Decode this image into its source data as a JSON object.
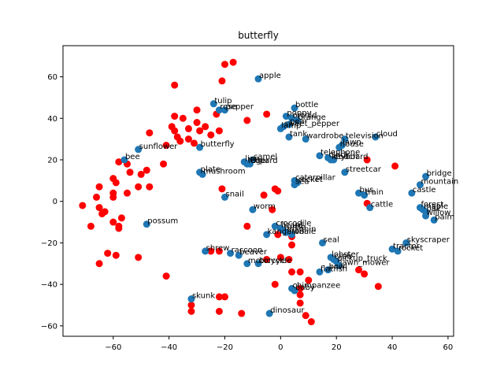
{
  "chart_data": {
    "type": "scatter",
    "title": "butterfly",
    "xlabel": "",
    "ylabel": "",
    "xlim": [
      -78,
      62
    ],
    "ylim": [
      -65,
      75
    ],
    "xticks": [
      -60,
      -40,
      -20,
      0,
      20,
      40,
      60
    ],
    "yticks": [
      -60,
      -40,
      -20,
      0,
      20,
      40,
      60
    ],
    "grid": false,
    "colors": {
      "labeled": "#1f77b4",
      "unlabeled": "#ff0000"
    },
    "labeled_points": [
      {
        "label": "apple",
        "x": -8,
        "y": 59
      },
      {
        "label": "bottle",
        "x": 5,
        "y": 45
      },
      {
        "label": "tulip",
        "x": -24,
        "y": 47
      },
      {
        "label": "rose",
        "x": -22,
        "y": 44
      },
      {
        "label": "pepper",
        "x": -20,
        "y": 44
      },
      {
        "label": "poppy",
        "x": 2,
        "y": 41
      },
      {
        "label": "orchid",
        "x": 4,
        "y": 40
      },
      {
        "label": "orange",
        "x": 6,
        "y": 39
      },
      {
        "label": "pear",
        "x": 3,
        "y": 37
      },
      {
        "label": "sweet_pepper",
        "x": 1,
        "y": 36
      },
      {
        "label": "lamp",
        "x": 0,
        "y": 35
      },
      {
        "label": "tank",
        "x": 3,
        "y": 31
      },
      {
        "label": "wardrobe",
        "x": 9,
        "y": 30
      },
      {
        "label": "television",
        "x": 23,
        "y": 30
      },
      {
        "label": "cloud",
        "x": 34,
        "y": 31
      },
      {
        "label": "lawn",
        "x": 22,
        "y": 27
      },
      {
        "label": "house",
        "x": 21,
        "y": 26
      },
      {
        "label": "butterfly",
        "x": -29,
        "y": 26
      },
      {
        "label": "sunflower",
        "x": -51,
        "y": 25
      },
      {
        "label": "bee",
        "x": -56,
        "y": 20
      },
      {
        "label": "camel",
        "x": -10,
        "y": 20
      },
      {
        "label": "lion",
        "x": -13,
        "y": 19
      },
      {
        "label": "leopard",
        "x": -12,
        "y": 18
      },
      {
        "label": "tiger",
        "x": -11,
        "y": 18
      },
      {
        "label": "telephone",
        "x": 14,
        "y": 22
      },
      {
        "label": "clock",
        "x": 17,
        "y": 21
      },
      {
        "label": "keyboard",
        "x": 18,
        "y": 20
      },
      {
        "label": "couch",
        "x": 19,
        "y": 20
      },
      {
        "label": "plate",
        "x": -29,
        "y": 14
      },
      {
        "label": "mushroom",
        "x": -28,
        "y": 13
      },
      {
        "label": "streetcar",
        "x": 23,
        "y": 14
      },
      {
        "label": "bridge",
        "x": 52,
        "y": 12
      },
      {
        "label": "mountain",
        "x": 50,
        "y": 8
      },
      {
        "label": "castle",
        "x": 47,
        "y": 4
      },
      {
        "label": "caterpillar",
        "x": 5,
        "y": 10
      },
      {
        "label": "rocket",
        "x": 6,
        "y": 9
      },
      {
        "label": "sea",
        "x": 5,
        "y": 8
      },
      {
        "label": "bus",
        "x": 28,
        "y": 4
      },
      {
        "label": "train",
        "x": 30,
        "y": 3
      },
      {
        "label": "cattle",
        "x": 32,
        "y": -3
      },
      {
        "label": "snail",
        "x": -20,
        "y": 2
      },
      {
        "label": "worm",
        "x": -10,
        "y": -4
      },
      {
        "label": "forest",
        "x": 50,
        "y": -3
      },
      {
        "label": "maple",
        "x": 51,
        "y": -4
      },
      {
        "label": "oak",
        "x": 52,
        "y": -5
      },
      {
        "label": "willow",
        "x": 52,
        "y": -7
      },
      {
        "label": "palm",
        "x": 55,
        "y": -9
      },
      {
        "label": "possum",
        "x": -48,
        "y": -11
      },
      {
        "label": "crocodile",
        "x": -2,
        "y": -12
      },
      {
        "label": "lizard",
        "x": 0,
        "y": -13
      },
      {
        "label": "turtle",
        "x": 1,
        "y": -14
      },
      {
        "label": "kangaroo",
        "x": -5,
        "y": -16
      },
      {
        "label": "dolphin",
        "x": 2,
        "y": -15
      },
      {
        "label": "whale",
        "x": 4,
        "y": -16
      },
      {
        "label": "seal",
        "x": 15,
        "y": -20
      },
      {
        "label": "skyscraper",
        "x": 45,
        "y": -20
      },
      {
        "label": "tractor",
        "x": 40,
        "y": -23
      },
      {
        "label": "rocket",
        "x": 42,
        "y": -24
      },
      {
        "label": "shrew",
        "x": -27,
        "y": -24
      },
      {
        "label": "raccoon",
        "x": -18,
        "y": -25
      },
      {
        "label": "beaver",
        "x": -15,
        "y": -26
      },
      {
        "label": "lobster",
        "x": 18,
        "y": -27
      },
      {
        "label": "crab",
        "x": 19,
        "y": -28
      },
      {
        "label": "pickup_truck",
        "x": 20,
        "y": -29
      },
      {
        "label": "motorcycle",
        "x": -12,
        "y": -30
      },
      {
        "label": "bicycle",
        "x": -8,
        "y": -30
      },
      {
        "label": "lawn_mower",
        "x": 21,
        "y": -31
      },
      {
        "label": "flatfish",
        "x": 14,
        "y": -34
      },
      {
        "label": "bowl",
        "x": 17,
        "y": -33
      },
      {
        "label": "chimpanzee",
        "x": 4,
        "y": -42
      },
      {
        "label": "baby",
        "x": 5,
        "y": -43
      },
      {
        "label": "skunk",
        "x": -32,
        "y": -47
      },
      {
        "label": "dinosaur",
        "x": -4,
        "y": -54
      }
    ],
    "unlabeled_points": [
      {
        "x": -20,
        "y": 66
      },
      {
        "x": -17,
        "y": 67
      },
      {
        "x": -21,
        "y": 58
      },
      {
        "x": -38,
        "y": 56
      },
      {
        "x": -30,
        "y": 44
      },
      {
        "x": -23,
        "y": 42
      },
      {
        "x": -12,
        "y": 39
      },
      {
        "x": -5,
        "y": 42
      },
      {
        "x": -38,
        "y": 41
      },
      {
        "x": -35,
        "y": 40
      },
      {
        "x": -30,
        "y": 38
      },
      {
        "x": -27,
        "y": 36
      },
      {
        "x": -39,
        "y": 36
      },
      {
        "x": -38,
        "y": 34
      },
      {
        "x": -33,
        "y": 35
      },
      {
        "x": -47,
        "y": 33
      },
      {
        "x": -29,
        "y": 34
      },
      {
        "x": -22,
        "y": 34
      },
      {
        "x": -25,
        "y": 32
      },
      {
        "x": -37,
        "y": 31
      },
      {
        "x": -36,
        "y": 29
      },
      {
        "x": -33,
        "y": 30
      },
      {
        "x": -41,
        "y": 27
      },
      {
        "x": -31,
        "y": 28
      },
      {
        "x": -42,
        "y": 18
      },
      {
        "x": -48,
        "y": 15
      },
      {
        "x": -50,
        "y": 13
      },
      {
        "x": -54,
        "y": 14
      },
      {
        "x": -58,
        "y": 19
      },
      {
        "x": -55,
        "y": 18
      },
      {
        "x": -60,
        "y": 11
      },
      {
        "x": -59,
        "y": 9
      },
      {
        "x": -47,
        "y": 7
      },
      {
        "x": -51,
        "y": 7
      },
      {
        "x": -55,
        "y": 4
      },
      {
        "x": -60,
        "y": 4
      },
      {
        "x": -65,
        "y": 7
      },
      {
        "x": -60,
        "y": 2
      },
      {
        "x": -66,
        "y": 2
      },
      {
        "x": -71,
        "y": -2
      },
      {
        "x": -65,
        "y": -3
      },
      {
        "x": -63,
        "y": -5
      },
      {
        "x": -64,
        "y": -6
      },
      {
        "x": -57,
        "y": -8
      },
      {
        "x": -60,
        "y": -10
      },
      {
        "x": -58,
        "y": -12
      },
      {
        "x": -58,
        "y": -13
      },
      {
        "x": -68,
        "y": -12
      },
      {
        "x": -62,
        "y": -25
      },
      {
        "x": -59,
        "y": -26
      },
      {
        "x": -65,
        "y": -30
      },
      {
        "x": -51,
        "y": -27
      },
      {
        "x": -41,
        "y": -36
      },
      {
        "x": -32,
        "y": -50
      },
      {
        "x": -32,
        "y": -53
      },
      {
        "x": -22,
        "y": -46
      },
      {
        "x": -22,
        "y": -53
      },
      {
        "x": -14,
        "y": -54
      },
      {
        "x": -21,
        "y": 6
      },
      {
        "x": -2,
        "y": 6
      },
      {
        "x": -1,
        "y": 5
      },
      {
        "x": -6,
        "y": 3
      },
      {
        "x": -3,
        "y": -4
      },
      {
        "x": -12,
        "y": -12
      },
      {
        "x": -1,
        "y": -16
      },
      {
        "x": 4,
        "y": -17
      },
      {
        "x": 4,
        "y": -21
      },
      {
        "x": -25,
        "y": -24
      },
      {
        "x": -22,
        "y": -24
      },
      {
        "x": -5,
        "y": -28
      },
      {
        "x": 0,
        "y": -27
      },
      {
        "x": 3,
        "y": -28
      },
      {
        "x": -2,
        "y": -40
      },
      {
        "x": 4,
        "y": -34
      },
      {
        "x": 7,
        "y": -34
      },
      {
        "x": 10,
        "y": -38
      },
      {
        "x": 7,
        "y": -42
      },
      {
        "x": 7,
        "y": -45
      },
      {
        "x": 7,
        "y": -49
      },
      {
        "x": 9,
        "y": -55
      },
      {
        "x": 11,
        "y": -58
      },
      {
        "x": 28,
        "y": -33
      },
      {
        "x": 30,
        "y": -35
      },
      {
        "x": 35,
        "y": -41
      },
      {
        "x": 31,
        "y": 20
      },
      {
        "x": 41,
        "y": 17
      },
      {
        "x": 31,
        "y": -1
      },
      {
        "x": -20,
        "y": -46
      }
    ]
  }
}
